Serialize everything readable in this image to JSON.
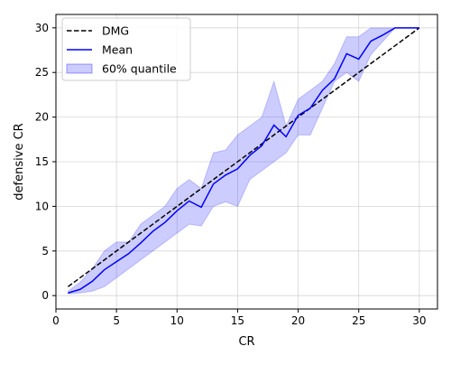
{
  "chart_data": {
    "type": "line",
    "xlabel": "CR",
    "ylabel": "defensive CR",
    "xlim": [
      0,
      31.5
    ],
    "ylim": [
      -1.5,
      31.5
    ],
    "xticks": [
      0,
      5,
      10,
      15,
      20,
      25,
      30
    ],
    "yticks": [
      0,
      5,
      10,
      15,
      20,
      25,
      30
    ],
    "grid": true,
    "legend_position": "top-left",
    "series": [
      {
        "name": "DMG",
        "style": "dashed",
        "color": "#000000",
        "x": [
          1,
          30
        ],
        "y": [
          1,
          30
        ]
      },
      {
        "name": "Mean",
        "style": "solid",
        "color": "#0000ff",
        "x": [
          1,
          2,
          3,
          4,
          5,
          6,
          7,
          8,
          9,
          10,
          11,
          12,
          13,
          14,
          15,
          16,
          17,
          18,
          19,
          20,
          21,
          22,
          23,
          24,
          25,
          26,
          27,
          28,
          29,
          30
        ],
        "y": [
          0.3,
          0.7,
          1.6,
          2.9,
          3.8,
          4.7,
          5.9,
          7.2,
          8.2,
          9.5,
          10.6,
          9.9,
          12.5,
          13.5,
          14.2,
          15.7,
          16.8,
          19.1,
          17.8,
          20.2,
          21.0,
          23.0,
          24.3,
          27.1,
          26.5,
          28.5,
          29.2,
          30.0,
          30.0,
          30.0
        ]
      },
      {
        "name": "60% quantile",
        "type": "band",
        "color": "#0000ff",
        "opacity": 0.2,
        "x": [
          1,
          2,
          3,
          4,
          5,
          6,
          7,
          8,
          9,
          10,
          11,
          12,
          13,
          14,
          15,
          16,
          17,
          18,
          19,
          20,
          21,
          22,
          23,
          24,
          25,
          26,
          27,
          28,
          29,
          30
        ],
        "lower": [
          0.2,
          0.3,
          0.5,
          1.0,
          2.0,
          3.0,
          4.0,
          5.0,
          6.0,
          7.0,
          8.0,
          7.8,
          10.0,
          10.5,
          10.0,
          13.0,
          14.0,
          15.0,
          16.0,
          18.0,
          18.0,
          21.0,
          24.0,
          25.0,
          24.0,
          27.0,
          28.5,
          30.0,
          30.0,
          30.0
        ],
        "upper": [
          0.5,
          1.5,
          3.0,
          5.0,
          6.0,
          6.0,
          8.0,
          9.0,
          10.0,
          12.0,
          13.0,
          12.0,
          16.0,
          16.3,
          18.0,
          19.0,
          20.0,
          24.0,
          19.0,
          22.0,
          23.0,
          24.0,
          26.0,
          29.0,
          29.0,
          30.0,
          30.0,
          30.0,
          30.0,
          30.0
        ]
      }
    ]
  }
}
